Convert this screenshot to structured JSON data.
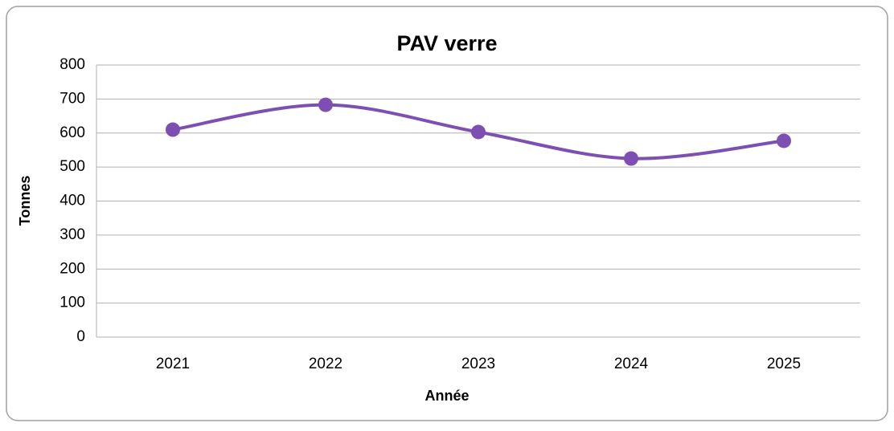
{
  "chart_data": {
    "type": "line",
    "title": "PAV verre",
    "x_label": "Année",
    "y_label": "Tonnes",
    "categories": [
      "2021",
      "2022",
      "2023",
      "2024",
      "2025"
    ],
    "series": [
      {
        "name": "PAV verre",
        "color": "#7e4fb3",
        "values": [
          610,
          683,
          603,
          525,
          577
        ]
      }
    ],
    "ylim": [
      0,
      800
    ],
    "yticks": [
      0,
      100,
      200,
      300,
      400,
      500,
      600,
      700,
      800
    ],
    "grid": true,
    "smooth": true,
    "markers": true
  }
}
